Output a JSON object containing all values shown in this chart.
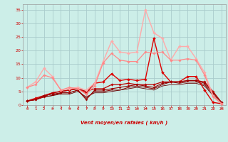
{
  "background_color": "#cceee8",
  "grid_color": "#aacccc",
  "xlabel": "Vent moyen/en rafales ( km/h )",
  "xlabel_color": "#cc0000",
  "ylabel_color": "#cc0000",
  "xlim": [
    -0.5,
    23.5
  ],
  "ylim": [
    0,
    37
  ],
  "yticks": [
    0,
    5,
    10,
    15,
    20,
    25,
    30,
    35
  ],
  "xticks": [
    0,
    1,
    2,
    3,
    4,
    5,
    6,
    7,
    8,
    9,
    10,
    11,
    12,
    13,
    14,
    15,
    16,
    17,
    18,
    19,
    20,
    21,
    22,
    23
  ],
  "series": [
    {
      "x": [
        0,
        1,
        2,
        3,
        4,
        5,
        6,
        7,
        8,
        9,
        10,
        11,
        12,
        13,
        14,
        15,
        16,
        17,
        18,
        19,
        20,
        21,
        22,
        23
      ],
      "y": [
        1.5,
        2.5,
        3.5,
        4.5,
        5.0,
        5.5,
        6.0,
        4.5,
        8.0,
        8.5,
        11.5,
        9.0,
        9.5,
        9.0,
        9.5,
        24.5,
        12.0,
        8.5,
        8.5,
        10.5,
        10.5,
        5.5,
        1.0,
        0.5
      ],
      "color": "#dd0000",
      "marker": "D",
      "markersize": 2.0,
      "linewidth": 1.0
    },
    {
      "x": [
        0,
        1,
        2,
        3,
        4,
        5,
        6,
        7,
        8,
        9,
        10,
        11,
        12,
        13,
        14,
        15,
        16,
        17,
        18,
        19,
        20,
        21,
        22,
        23
      ],
      "y": [
        1.5,
        2.0,
        3.0,
        4.5,
        5.0,
        5.5,
        6.0,
        5.0,
        6.0,
        6.0,
        7.5,
        7.5,
        8.0,
        7.5,
        7.5,
        7.5,
        8.5,
        8.5,
        8.5,
        9.0,
        9.0,
        8.5,
        5.0,
        1.0
      ],
      "color": "#bb0000",
      "marker": "D",
      "markersize": 1.8,
      "linewidth": 0.9
    },
    {
      "x": [
        0,
        1,
        2,
        3,
        4,
        5,
        6,
        7,
        8,
        9,
        10,
        11,
        12,
        13,
        14,
        15,
        16,
        17,
        18,
        19,
        20,
        21,
        22,
        23
      ],
      "y": [
        1.5,
        2.0,
        3.5,
        4.0,
        4.5,
        4.5,
        5.5,
        2.0,
        5.5,
        5.5,
        6.0,
        6.5,
        7.0,
        7.5,
        7.0,
        6.5,
        8.0,
        8.5,
        8.5,
        9.0,
        9.0,
        8.0,
        4.5,
        1.0
      ],
      "color": "#990000",
      "marker": "D",
      "markersize": 1.6,
      "linewidth": 0.8
    },
    {
      "x": [
        0,
        1,
        2,
        3,
        4,
        5,
        6,
        7,
        8,
        9,
        10,
        11,
        12,
        13,
        14,
        15,
        16,
        17,
        18,
        19,
        20,
        21,
        22,
        23
      ],
      "y": [
        1.5,
        2.0,
        3.0,
        3.5,
        4.5,
        4.5,
        5.5,
        2.5,
        5.0,
        5.0,
        5.5,
        5.5,
        6.5,
        7.0,
        6.5,
        6.0,
        7.5,
        8.5,
        8.0,
        8.5,
        8.5,
        7.5,
        4.0,
        0.5
      ],
      "color": "#880000",
      "marker": null,
      "markersize": 0,
      "linewidth": 0.7
    },
    {
      "x": [
        0,
        1,
        2,
        3,
        4,
        5,
        6,
        7,
        8,
        9,
        10,
        11,
        12,
        13,
        14,
        15,
        16,
        17,
        18,
        19,
        20,
        21,
        22,
        23
      ],
      "y": [
        1.5,
        2.0,
        3.0,
        3.5,
        4.0,
        4.0,
        5.0,
        3.0,
        4.5,
        4.5,
        5.0,
        5.5,
        6.0,
        6.5,
        6.0,
        5.5,
        7.0,
        7.5,
        7.5,
        8.0,
        8.0,
        7.0,
        3.5,
        0.5
      ],
      "color": "#660000",
      "marker": null,
      "markersize": 0,
      "linewidth": 0.6
    },
    {
      "x": [
        0,
        1,
        2,
        3,
        4,
        5,
        6,
        7,
        8,
        9,
        10,
        11,
        12,
        13,
        14,
        15,
        16,
        17,
        18,
        19,
        20,
        21,
        22,
        23
      ],
      "y": [
        6.5,
        8.5,
        13.5,
        10.5,
        5.5,
        6.0,
        6.5,
        5.5,
        8.0,
        16.0,
        23.5,
        19.5,
        19.0,
        19.5,
        35.0,
        26.5,
        24.5,
        16.5,
        21.5,
        21.5,
        17.0,
        12.0,
        3.5,
        0.5
      ],
      "color": "#ffaaaa",
      "marker": "D",
      "markersize": 2.0,
      "linewidth": 1.0
    },
    {
      "x": [
        0,
        1,
        2,
        3,
        4,
        5,
        6,
        7,
        8,
        9,
        10,
        11,
        12,
        13,
        14,
        15,
        16,
        17,
        18,
        19,
        20,
        21,
        22,
        23
      ],
      "y": [
        6.5,
        7.5,
        11.0,
        10.0,
        5.5,
        6.5,
        6.0,
        4.0,
        7.0,
        15.5,
        19.0,
        16.5,
        16.0,
        16.0,
        19.5,
        19.0,
        19.5,
        16.5,
        16.5,
        17.0,
        16.5,
        11.0,
        3.0,
        0.5
      ],
      "color": "#ff8888",
      "marker": "D",
      "markersize": 1.8,
      "linewidth": 0.9
    }
  ],
  "wind_arrows": [
    "↓",
    "↑",
    "↖",
    "→",
    "↗",
    "→",
    "↗",
    "↓",
    "↖",
    "↖",
    "↖",
    "↖",
    "↑",
    "→",
    "→",
    "↘",
    "↙",
    "↙",
    "↙",
    "↓",
    "↓",
    "↓",
    "↓",
    "→"
  ]
}
